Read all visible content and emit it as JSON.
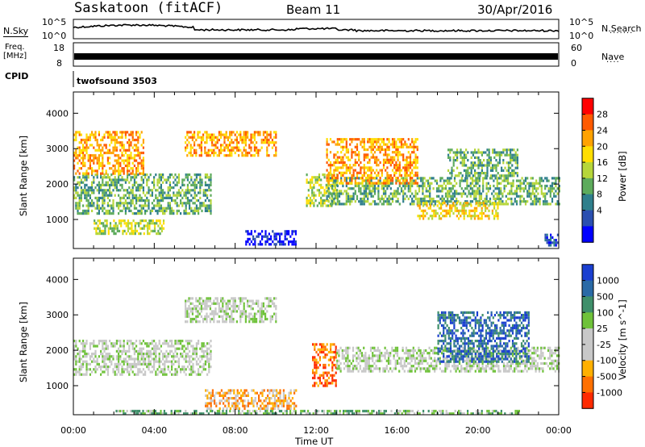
{
  "header": {
    "station": "Saskatoon (fitACF)",
    "beam": "Beam 11",
    "date": "30/Apr/2016"
  },
  "panels": {
    "nsky": {
      "label": "N.Sky",
      "ticks": [
        "10^5",
        "10^0"
      ]
    },
    "nsearch": {
      "label": "N.Search",
      "ticks": [
        "10^5",
        "10^0"
      ]
    },
    "freq": {
      "label_line1": "Freq.",
      "label_line2": "[MHz]",
      "ticks": [
        "18",
        "8"
      ]
    },
    "nave": {
      "label": "Nave",
      "ticks": [
        "60",
        "0"
      ]
    },
    "cpid": {
      "label": "CPID",
      "value": "twofsound 3503"
    }
  },
  "chart_data": [
    {
      "type": "heatmap",
      "panel": "power",
      "ylabel": "Slant Range [km]",
      "xlabel": "Time UT",
      "xticks": [
        "00:00",
        "04:00",
        "08:00",
        "12:00",
        "16:00",
        "20:00",
        "00:00"
      ],
      "yticks": [
        1000,
        2000,
        3000,
        4000
      ],
      "ylim": [
        180,
        4600
      ],
      "xlim": [
        0,
        24
      ],
      "colorbar": {
        "label": "Power [dB]",
        "ticks": [
          "28",
          "24",
          "20",
          "16",
          "12",
          "8",
          "4"
        ],
        "colors": [
          "#ff0000",
          "#ff5a00",
          "#ffa200",
          "#ffde00",
          "#b6d63a",
          "#5dab5c",
          "#2f7f8c",
          "#2a4fb0",
          "#0000ff"
        ]
      },
      "echo_regions": [
        {
          "t0": 0.0,
          "t1": 6.8,
          "r0": 1200,
          "r1": 2300,
          "level": 5
        },
        {
          "t0": 0.0,
          "t1": 3.5,
          "r0": 2300,
          "r1": 3500,
          "level": 2
        },
        {
          "t0": 5.5,
          "t1": 10.0,
          "r0": 2800,
          "r1": 3500,
          "level": 2
        },
        {
          "t0": 1.0,
          "t1": 4.5,
          "r0": 600,
          "r1": 1000,
          "level": 4
        },
        {
          "t0": 8.5,
          "t1": 11.0,
          "r0": 300,
          "r1": 700,
          "level": 8
        },
        {
          "t0": 11.5,
          "t1": 13.0,
          "r0": 1400,
          "r1": 2300,
          "level": 4
        },
        {
          "t0": 12.5,
          "t1": 24.0,
          "r0": 1400,
          "r1": 2200,
          "level": 5
        },
        {
          "t0": 12.5,
          "t1": 17.0,
          "r0": 2000,
          "r1": 3300,
          "level": 2
        },
        {
          "t0": 17.0,
          "t1": 21.0,
          "r0": 1000,
          "r1": 1500,
          "level": 3
        },
        {
          "t0": 18.5,
          "t1": 22.0,
          "r0": 2200,
          "r1": 3000,
          "level": 5
        },
        {
          "t0": 23.3,
          "t1": 24.0,
          "r0": 300,
          "r1": 600,
          "level": 7
        }
      ]
    },
    {
      "type": "heatmap",
      "panel": "velocity",
      "ylabel": "Slant Range [km]",
      "xlabel": "Time UT",
      "xticks": [
        "00:00",
        "04:00",
        "08:00",
        "12:00",
        "16:00",
        "20:00",
        "00:00"
      ],
      "yticks": [
        1000,
        2000,
        3000,
        4000
      ],
      "ylim": [
        180,
        4600
      ],
      "xlim": [
        0,
        24
      ],
      "colorbar": {
        "label": "Velocity [m s^-1]",
        "ticks": [
          "1000",
          "500",
          "100",
          "25",
          "-25",
          "-100",
          "-500",
          "-1000"
        ],
        "colors": [
          "#1a3fd0",
          "#2a6aa6",
          "#3f8f6a",
          "#6fc23a",
          "#c8c8c8",
          "#c8c8c8",
          "#ffb000",
          "#ff7000",
          "#ff2a00"
        ]
      },
      "echo_regions": [
        {
          "t0": 0.0,
          "t1": 6.8,
          "r0": 1300,
          "r1": 2300,
          "level": 4
        },
        {
          "t0": 5.5,
          "t1": 10.0,
          "r0": 2800,
          "r1": 3500,
          "level": 4
        },
        {
          "t0": 11.8,
          "t1": 13.0,
          "r0": 1000,
          "r1": 2200,
          "level": 7
        },
        {
          "t0": 13.0,
          "t1": 24.0,
          "r0": 1400,
          "r1": 2100,
          "level": 4
        },
        {
          "t0": 18.0,
          "t1": 22.5,
          "r0": 1700,
          "r1": 3100,
          "level": 1
        },
        {
          "t0": 6.5,
          "t1": 11.0,
          "r0": 350,
          "r1": 900,
          "level": 6
        },
        {
          "t0": 2.0,
          "t1": 22.0,
          "r0": 180,
          "r1": 320,
          "level": 3
        }
      ]
    }
  ]
}
